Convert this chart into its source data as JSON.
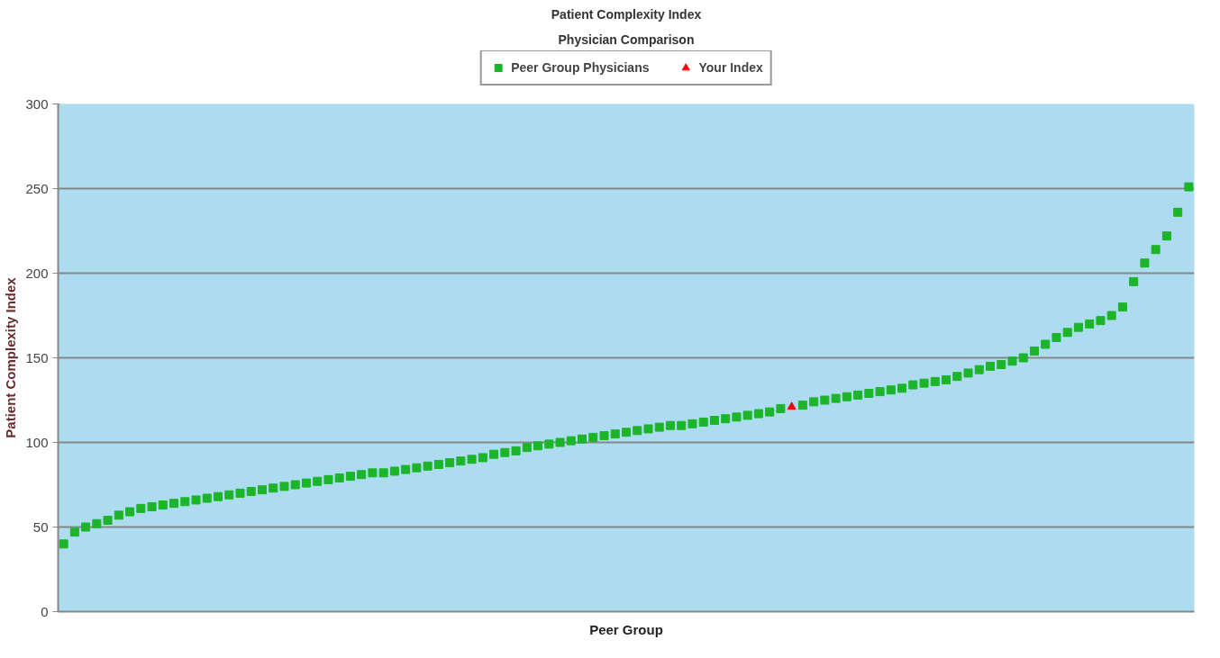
{
  "chart_data": {
    "type": "scatter",
    "title": "Patient Complexity Index",
    "subtitle": "Physician Comparison",
    "xlabel": "Peer Group",
    "ylabel": "Patient Complexity Index",
    "categories": [
      null,
      null,
      null,
      null,
      null,
      null,
      null,
      null,
      null,
      null,
      null,
      null,
      null,
      null,
      null,
      null,
      null,
      null,
      null,
      null,
      null,
      null,
      null,
      null,
      null,
      null,
      null,
      null,
      null,
      null,
      null,
      null,
      null,
      null,
      null,
      null,
      null,
      null,
      null,
      null,
      null,
      null,
      null,
      null,
      null,
      null,
      null,
      null,
      null,
      null,
      null,
      null,
      null,
      null,
      null,
      null,
      null,
      null,
      null,
      null,
      null,
      null,
      null,
      null,
      null,
      null,
      null,
      null,
      null,
      null,
      null,
      null,
      null,
      null,
      null,
      null,
      null,
      null,
      null,
      null,
      null,
      null,
      null,
      null,
      null,
      null,
      null,
      null,
      null,
      null,
      null,
      null,
      null,
      null,
      null,
      null,
      null,
      null,
      null,
      null,
      null,
      null,
      null
    ],
    "series": [
      {
        "name": "Peer Group Physicians",
        "color": "#1cb52a",
        "marker": "square",
        "values": [
          40,
          47,
          50,
          52,
          54,
          57,
          59,
          61,
          62,
          63,
          64,
          65,
          66,
          67,
          68,
          69,
          70,
          71,
          72,
          73,
          74,
          75,
          76,
          77,
          78,
          79,
          80,
          81,
          82,
          82,
          83,
          84,
          85,
          86,
          87,
          88,
          89,
          90,
          91,
          93,
          94,
          95,
          97,
          98,
          99,
          100,
          101,
          102,
          103,
          104,
          105,
          106,
          107,
          108,
          109,
          110,
          110,
          111,
          112,
          113,
          114,
          115,
          116,
          117,
          118,
          120,
          null,
          122,
          124,
          125,
          126,
          127,
          128,
          129,
          130,
          131,
          132,
          134,
          135,
          136,
          137,
          139,
          141,
          143,
          145,
          146,
          148,
          150,
          154,
          158,
          162,
          165,
          168,
          170,
          172,
          175,
          180,
          195,
          206,
          214,
          222,
          236,
          251
        ]
      },
      {
        "name": "Your Index",
        "color": "#ff0000",
        "marker": "triangle",
        "values": [
          null,
          null,
          null,
          null,
          null,
          null,
          null,
          null,
          null,
          null,
          null,
          null,
          null,
          null,
          null,
          null,
          null,
          null,
          null,
          null,
          null,
          null,
          null,
          null,
          null,
          null,
          null,
          null,
          null,
          null,
          null,
          null,
          null,
          null,
          null,
          null,
          null,
          null,
          null,
          null,
          null,
          null,
          null,
          null,
          null,
          null,
          null,
          null,
          null,
          null,
          null,
          null,
          null,
          null,
          null,
          null,
          null,
          null,
          null,
          null,
          null,
          null,
          null,
          null,
          null,
          null,
          121,
          null,
          null,
          null,
          null,
          null,
          null,
          null,
          null,
          null,
          null,
          null,
          null,
          null,
          null,
          null,
          null,
          null,
          null,
          null,
          null,
          null,
          null,
          null,
          null,
          null,
          null,
          null,
          null,
          null,
          null,
          null,
          null,
          null,
          null,
          null,
          null
        ]
      }
    ],
    "ylim": [
      0,
      300
    ],
    "yticks": [
      0,
      50,
      100,
      150,
      200,
      250,
      300
    ],
    "grid": "y",
    "legend": "top",
    "tick_labels": "y"
  }
}
